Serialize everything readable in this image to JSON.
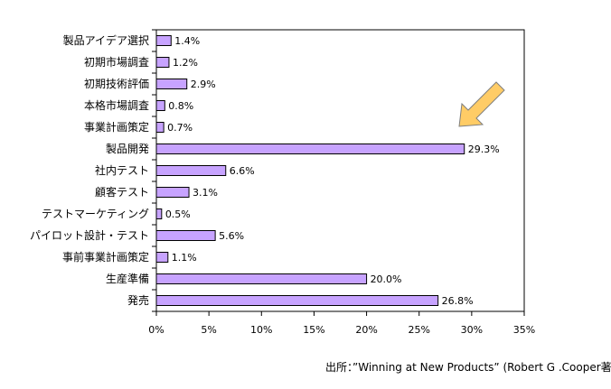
{
  "chart_data": {
    "type": "bar",
    "orientation": "horizontal",
    "title": "",
    "xlabel": "",
    "ylabel": "",
    "categories": [
      "製品アイデア選択",
      "初期市場調査",
      "初期技術評価",
      "本格市場調査",
      "事業計画策定",
      "製品開発",
      "社内テスト",
      "顧客テスト",
      "テストマーケティング",
      "パイロット設計・テスト",
      "事前事業計画策定",
      "生産準備",
      "発売"
    ],
    "values": [
      1.4,
      1.2,
      2.9,
      0.8,
      0.7,
      29.3,
      6.6,
      3.1,
      0.5,
      5.6,
      1.1,
      20.0,
      26.8
    ],
    "value_labels": [
      "1.4%",
      "1.2%",
      "2.9%",
      "0.8%",
      "0.7%",
      "29.3%",
      "6.6%",
      "3.1%",
      "0.5%",
      "5.6%",
      "1.1%",
      "20.0%",
      "26.8%"
    ],
    "xlim": [
      0,
      35
    ],
    "xticks": [
      0,
      5,
      10,
      15,
      20,
      25,
      30,
      35
    ],
    "xtick_labels": [
      "0%",
      "5%",
      "10%",
      "15%",
      "20%",
      "25%",
      "30%",
      "35%"
    ],
    "grid": false,
    "bar_color": "#c7a3ff",
    "annotation": {
      "type": "arrow",
      "points_to": "製品開発",
      "color": "#ffcc66"
    }
  },
  "source_note": "出所：”Winning at New Products” (Robert G .Cooper著)"
}
